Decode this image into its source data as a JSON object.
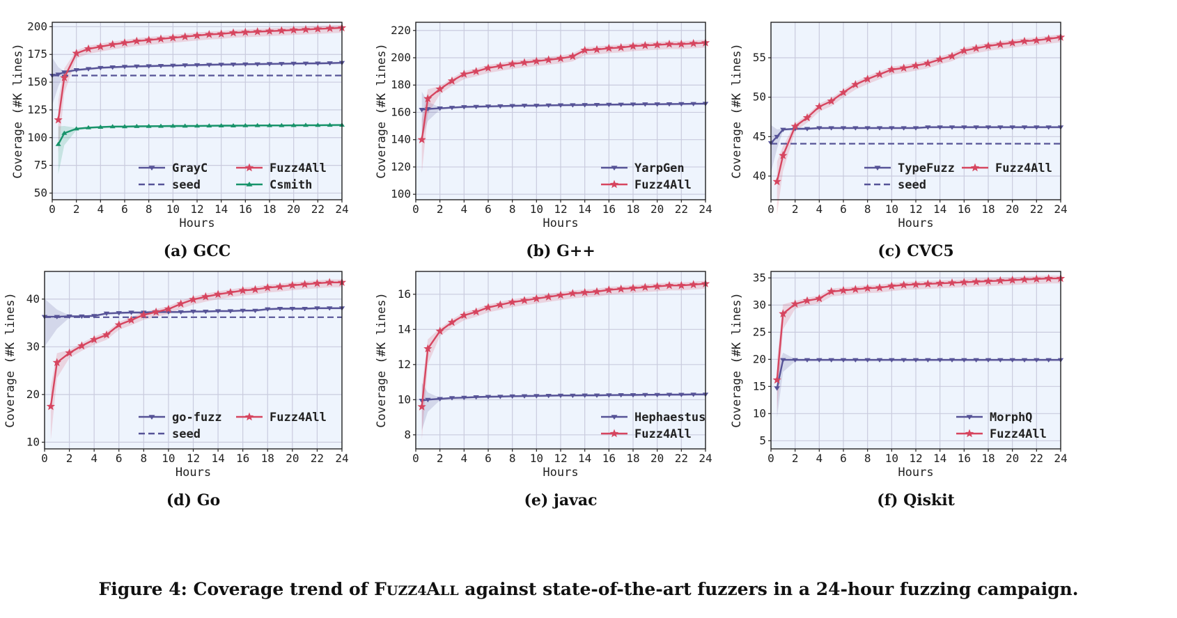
{
  "figure": {
    "caption_prefix": "Figure 4: Coverage trend of ",
    "caption_name_first": "F",
    "caption_name_small": "UZZ4",
    "caption_name_mid": "A",
    "caption_name_small2": "LL",
    "caption_suffix": " against state-of-the-art fuzzers in a 24-hour fuzzing campaign."
  },
  "colors": {
    "baseline": "#565397",
    "fuzz4all": "#d6455f",
    "csmith": "#17936a",
    "seed": "#565397",
    "plot_bg": "#eef4fd",
    "grid": "#c9cbde"
  },
  "chart_data": [
    {
      "type": "line",
      "caption": "(a) GCC",
      "xlabel": "Hours",
      "ylabel": "Coverage (#K lines)",
      "xlim": [
        0,
        24
      ],
      "ylim": [
        44,
        204
      ],
      "xticks": [
        0,
        2,
        4,
        6,
        8,
        10,
        12,
        14,
        16,
        18,
        20,
        22,
        24
      ],
      "yticks": [
        50,
        75,
        100,
        125,
        150,
        175,
        200
      ],
      "legend_position": "lower-right",
      "legend_cols": 2,
      "series": [
        {
          "name": "GrayC",
          "style": "baseline",
          "x": [
            0,
            0.5,
            1,
            2,
            3,
            4,
            5,
            6,
            7,
            8,
            9,
            10,
            11,
            12,
            13,
            14,
            15,
            16,
            17,
            18,
            19,
            20,
            21,
            22,
            23,
            24
          ],
          "y": [
            156,
            157,
            159,
            161,
            162,
            163,
            163.5,
            164,
            164.3,
            164.5,
            164.8,
            165,
            165.3,
            165.5,
            165.7,
            165.9,
            166,
            166.2,
            166.3,
            166.5,
            166.6,
            166.8,
            166.9,
            167,
            167.2,
            167.5
          ]
        },
        {
          "name": "seed",
          "style": "seed",
          "x": [
            0,
            24
          ],
          "y": [
            156,
            156
          ]
        },
        {
          "name": "Fuzz4All",
          "style": "fuzz4all",
          "x": [
            0.5,
            1,
            2,
            3,
            4,
            5,
            6,
            7,
            8,
            9,
            10,
            11,
            12,
            13,
            14,
            15,
            16,
            17,
            18,
            19,
            20,
            21,
            22,
            23,
            24
          ],
          "y": [
            116,
            154,
            176,
            180,
            182,
            184,
            185.5,
            187,
            188,
            189,
            190,
            191,
            192,
            193,
            193.5,
            194.5,
            195,
            195.5,
            196,
            196.5,
            197,
            197.5,
            198,
            198.5,
            199
          ]
        },
        {
          "name": "Csmith",
          "style": "csmith",
          "x": [
            0.5,
            1,
            2,
            3,
            4,
            5,
            6,
            7,
            8,
            9,
            10,
            11,
            12,
            13,
            14,
            15,
            16,
            17,
            18,
            19,
            20,
            21,
            22,
            23,
            24
          ],
          "y": [
            94,
            104,
            108,
            109,
            109.5,
            110,
            110,
            110.2,
            110.3,
            110.4,
            110.5,
            110.5,
            110.6,
            110.7,
            110.8,
            110.8,
            110.9,
            111,
            111,
            111,
            111.1,
            111.2,
            111.2,
            111.3,
            111.4
          ]
        }
      ]
    },
    {
      "type": "line",
      "caption": "(b) G++",
      "xlabel": "Hours",
      "ylabel": "Coverage (#K lines)",
      "xlim": [
        0,
        24
      ],
      "ylim": [
        96,
        226
      ],
      "xticks": [
        0,
        2,
        4,
        6,
        8,
        10,
        12,
        14,
        16,
        18,
        20,
        22,
        24
      ],
      "yticks": [
        100,
        120,
        140,
        160,
        180,
        200,
        220
      ],
      "legend_position": "lower-right",
      "legend_cols": 1,
      "series": [
        {
          "name": "YarpGen",
          "style": "baseline",
          "x": [
            0.5,
            1,
            2,
            3,
            4,
            5,
            6,
            7,
            8,
            9,
            10,
            11,
            12,
            13,
            14,
            15,
            16,
            17,
            18,
            19,
            20,
            21,
            22,
            23,
            24
          ],
          "y": [
            162,
            162.5,
            163,
            163.5,
            164,
            164.2,
            164.4,
            164.6,
            164.8,
            165,
            165,
            165.2,
            165.3,
            165.4,
            165.5,
            165.6,
            165.7,
            165.8,
            165.9,
            166,
            166,
            166.1,
            166.2,
            166.3,
            166.4
          ]
        },
        {
          "name": "Fuzz4All",
          "style": "fuzz4all",
          "x": [
            0.5,
            1,
            2,
            3,
            4,
            5,
            6,
            7,
            8,
            9,
            10,
            11,
            12,
            13,
            14,
            15,
            16,
            17,
            18,
            19,
            20,
            21,
            22,
            23,
            24
          ],
          "y": [
            140,
            170,
            177,
            183,
            188,
            190,
            192.5,
            194,
            195.5,
            196.5,
            197.5,
            198.5,
            199.5,
            201,
            205.5,
            206,
            207,
            207.5,
            208.5,
            209,
            209.5,
            210,
            210,
            210.5,
            211
          ]
        }
      ]
    },
    {
      "type": "line",
      "caption": "(c) CVC5",
      "xlabel": "Hours",
      "ylabel": "Coverage (#K lines)",
      "xlim": [
        0,
        24
      ],
      "ylim": [
        37,
        59.5
      ],
      "xticks": [
        0,
        2,
        4,
        6,
        8,
        10,
        12,
        14,
        16,
        18,
        20,
        22,
        24
      ],
      "yticks": [
        40,
        45,
        50,
        55
      ],
      "legend_position": "lower-right",
      "legend_cols": 2,
      "series": [
        {
          "name": "TypeFuzz",
          "style": "baseline",
          "x": [
            0,
            0.5,
            1,
            2,
            3,
            4,
            5,
            6,
            7,
            8,
            9,
            10,
            11,
            12,
            13,
            14,
            15,
            16,
            17,
            18,
            19,
            20,
            21,
            22,
            23,
            24
          ],
          "y": [
            44.2,
            45,
            45.9,
            46,
            46,
            46.1,
            46.1,
            46.1,
            46.1,
            46.1,
            46.1,
            46.1,
            46.1,
            46.1,
            46.2,
            46.2,
            46.2,
            46.2,
            46.2,
            46.2,
            46.2,
            46.2,
            46.2,
            46.2,
            46.2,
            46.2
          ]
        },
        {
          "name": "seed",
          "style": "seed",
          "x": [
            0,
            24
          ],
          "y": [
            44.1,
            44.1
          ]
        },
        {
          "name": "Fuzz4All",
          "style": "fuzz4all",
          "x": [
            0.5,
            1,
            2,
            3,
            4,
            5,
            6,
            7,
            8,
            9,
            10,
            11,
            12,
            13,
            14,
            15,
            16,
            17,
            18,
            19,
            20,
            21,
            22,
            23,
            24
          ],
          "y": [
            39.3,
            42.6,
            46.3,
            47.4,
            48.8,
            49.5,
            50.6,
            51.6,
            52.3,
            52.9,
            53.5,
            53.7,
            54,
            54.3,
            54.8,
            55.2,
            55.9,
            56.2,
            56.5,
            56.7,
            56.9,
            57.1,
            57.2,
            57.4,
            57.6
          ]
        }
      ]
    },
    {
      "type": "line",
      "caption": "(d) Go",
      "xlabel": "Hours",
      "ylabel": "Coverage (#K lines)",
      "xlim": [
        0,
        24
      ],
      "ylim": [
        8.6,
        45.8
      ],
      "xticks": [
        0,
        2,
        4,
        6,
        8,
        10,
        12,
        14,
        16,
        18,
        20,
        22,
        24
      ],
      "yticks": [
        10,
        20,
        30,
        40
      ],
      "legend_position": "lower-right",
      "legend_cols": 2,
      "series": [
        {
          "name": "go-fuzz",
          "style": "baseline",
          "x": [
            0,
            1,
            2,
            3,
            4,
            5,
            6,
            7,
            8,
            9,
            10,
            11,
            12,
            13,
            14,
            15,
            16,
            17,
            18,
            19,
            20,
            21,
            22,
            23,
            24
          ],
          "y": [
            36.3,
            36.3,
            36.4,
            36.4,
            36.5,
            37,
            37.1,
            37.2,
            37.2,
            37.3,
            37.3,
            37.3,
            37.4,
            37.4,
            37.5,
            37.5,
            37.6,
            37.6,
            37.9,
            38,
            38,
            38,
            38.1,
            38.1,
            38.1
          ]
        },
        {
          "name": "seed",
          "style": "seed",
          "x": [
            0,
            24
          ],
          "y": [
            36.2,
            36.2
          ]
        },
        {
          "name": "Fuzz4All",
          "style": "fuzz4all",
          "x": [
            0.5,
            1,
            2,
            3,
            4,
            5,
            6,
            7,
            8,
            9,
            10,
            11,
            12,
            13,
            14,
            15,
            16,
            17,
            18,
            19,
            20,
            21,
            22,
            23,
            24
          ],
          "y": [
            17.5,
            26.7,
            28.7,
            30.2,
            31.5,
            32.5,
            34.6,
            35.6,
            36.7,
            37.3,
            37.9,
            39,
            39.9,
            40.5,
            41,
            41.4,
            41.8,
            42,
            42.4,
            42.6,
            42.9,
            43.1,
            43.3,
            43.5,
            43.5
          ]
        }
      ]
    },
    {
      "type": "line",
      "caption": "(e) javac",
      "xlabel": "Hours",
      "ylabel": "Coverage (#K lines)",
      "xlim": [
        0,
        24
      ],
      "ylim": [
        7.2,
        17.3
      ],
      "xticks": [
        0,
        2,
        4,
        6,
        8,
        10,
        12,
        14,
        16,
        18,
        20,
        22,
        24
      ],
      "yticks": [
        8,
        10,
        12,
        14,
        16
      ],
      "legend_position": "lower-right",
      "legend_cols": 1,
      "series": [
        {
          "name": "Hephaestus",
          "style": "baseline",
          "x": [
            0.5,
            1,
            2,
            3,
            4,
            5,
            6,
            7,
            8,
            9,
            10,
            11,
            12,
            13,
            14,
            15,
            16,
            17,
            18,
            19,
            20,
            21,
            22,
            23,
            24
          ],
          "y": [
            9.95,
            10,
            10.05,
            10.1,
            10.12,
            10.15,
            10.17,
            10.18,
            10.2,
            10.21,
            10.22,
            10.23,
            10.24,
            10.24,
            10.25,
            10.25,
            10.26,
            10.27,
            10.27,
            10.28,
            10.28,
            10.29,
            10.29,
            10.3,
            10.3
          ]
        },
        {
          "name": "Fuzz4All",
          "style": "fuzz4all",
          "x": [
            0.5,
            1,
            2,
            3,
            4,
            5,
            6,
            7,
            8,
            9,
            10,
            11,
            12,
            13,
            14,
            15,
            16,
            17,
            18,
            19,
            20,
            21,
            22,
            23,
            24
          ],
          "y": [
            9.6,
            12.9,
            13.9,
            14.4,
            14.8,
            15,
            15.25,
            15.4,
            15.55,
            15.65,
            15.75,
            15.85,
            15.95,
            16.05,
            16.1,
            16.15,
            16.25,
            16.3,
            16.35,
            16.4,
            16.45,
            16.5,
            16.5,
            16.55,
            16.6
          ]
        }
      ]
    },
    {
      "type": "line",
      "caption": "(f) Qiskit",
      "xlabel": "Hours",
      "ylabel": "Coverage (#K lines)",
      "xlim": [
        0,
        24
      ],
      "ylim": [
        3.5,
        36.2
      ],
      "xticks": [
        0,
        2,
        4,
        6,
        8,
        10,
        12,
        14,
        16,
        18,
        20,
        22,
        24
      ],
      "yticks": [
        5,
        10,
        15,
        20,
        25,
        30,
        35
      ],
      "legend_position": "lower-right",
      "legend_cols": 1,
      "series": [
        {
          "name": "MorphQ",
          "style": "baseline",
          "x": [
            0.5,
            1,
            2,
            3,
            4,
            5,
            6,
            7,
            8,
            9,
            10,
            11,
            12,
            13,
            14,
            15,
            16,
            17,
            18,
            19,
            20,
            21,
            22,
            23,
            24
          ],
          "y": [
            14.7,
            19.9,
            19.9,
            19.9,
            19.9,
            19.9,
            19.9,
            19.9,
            19.9,
            19.9,
            19.9,
            19.9,
            19.9,
            19.9,
            19.9,
            19.9,
            19.9,
            19.9,
            19.9,
            19.9,
            19.9,
            19.9,
            19.9,
            19.9,
            19.9
          ]
        },
        {
          "name": "Fuzz4All",
          "style": "fuzz4all",
          "x": [
            0.5,
            1,
            2,
            3,
            4,
            5,
            6,
            7,
            8,
            9,
            10,
            11,
            12,
            13,
            14,
            15,
            16,
            17,
            18,
            19,
            20,
            21,
            22,
            23,
            24
          ],
          "y": [
            16.2,
            28.4,
            30.2,
            30.8,
            31.2,
            32.5,
            32.7,
            32.9,
            33.1,
            33.2,
            33.5,
            33.7,
            33.8,
            33.9,
            34,
            34.1,
            34.2,
            34.3,
            34.4,
            34.5,
            34.6,
            34.7,
            34.8,
            34.9,
            34.9
          ]
        }
      ]
    }
  ]
}
